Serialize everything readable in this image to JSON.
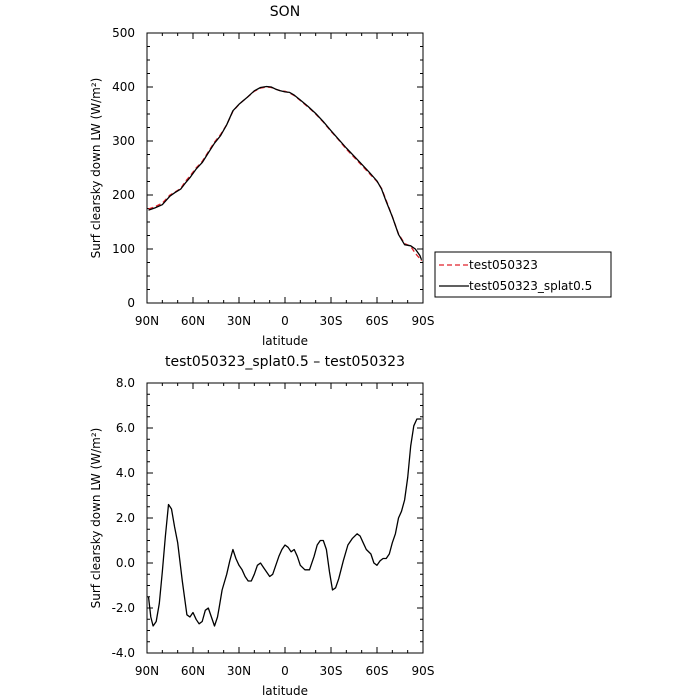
{
  "chart_data": [
    {
      "type": "line",
      "title": "SON",
      "xlabel": "latitude",
      "ylabel": "Surf clearsky down LW (W/m²)",
      "xlim": [
        90,
        -90
      ],
      "ylim": [
        0,
        500
      ],
      "xticks": [
        90,
        60,
        30,
        0,
        -30,
        -60,
        -90
      ],
      "xtick_labels": [
        "90N",
        "60N",
        "30N",
        "0",
        "30S",
        "60S",
        "90S"
      ],
      "yticks": [
        0,
        100,
        200,
        300,
        400,
        500
      ],
      "ytick_labels": [
        "0",
        "100",
        "200",
        "300",
        "400",
        "500"
      ],
      "legend_position": "right",
      "series": [
        {
          "name": "test050323",
          "color": "#e0202a",
          "dash": "dashed",
          "x": [
            89,
            85,
            80,
            75,
            72,
            68,
            65,
            62,
            58,
            54,
            50,
            46,
            42,
            38,
            34,
            30,
            25,
            20,
            16,
            12,
            9,
            6,
            3,
            0,
            -3,
            -6,
            -10,
            -15,
            -20,
            -25,
            -30,
            -35,
            -40,
            -45,
            -50,
            -55,
            -60,
            -63,
            -66,
            -70,
            -74,
            -78,
            -82,
            -85,
            -88,
            -89
          ],
          "y": [
            174,
            178,
            185,
            200,
            205,
            212,
            225,
            235,
            250,
            262,
            280,
            298,
            312,
            330,
            355,
            368,
            380,
            392,
            398,
            400,
            399,
            396,
            393,
            392,
            389,
            384,
            375,
            363,
            350,
            335,
            318,
            302,
            285,
            270,
            255,
            240,
            225,
            212,
            190,
            160,
            128,
            110,
            105,
            92,
            82,
            78
          ]
        },
        {
          "name": "test050323_splat0.5",
          "color": "#000000",
          "dash": "solid",
          "x": [
            89,
            85,
            80,
            75,
            72,
            68,
            65,
            62,
            58,
            54,
            50,
            46,
            42,
            38,
            34,
            30,
            25,
            20,
            16,
            12,
            9,
            6,
            3,
            0,
            -3,
            -6,
            -10,
            -15,
            -20,
            -25,
            -30,
            -35,
            -40,
            -45,
            -50,
            -55,
            -60,
            -63,
            -66,
            -70,
            -74,
            -78,
            -82,
            -85,
            -88,
            -89
          ],
          "y": [
            172,
            176,
            182,
            198,
            204,
            211,
            222,
            232,
            248,
            260,
            278,
            296,
            310,
            330,
            356,
            368,
            380,
            393,
            399,
            401,
            400,
            396,
            393,
            391,
            390,
            385,
            376,
            364,
            351,
            336,
            319,
            303,
            287,
            272,
            257,
            242,
            226,
            211,
            188,
            160,
            127,
            108,
            106,
            100,
            88,
            80
          ]
        }
      ]
    },
    {
      "type": "line",
      "title": "test050323_splat0.5 – test050323",
      "xlabel": "latitude",
      "ylabel": "Surf clearsky down LW (W/m²)",
      "xlim": [
        90,
        -90
      ],
      "ylim": [
        -4,
        8
      ],
      "xticks": [
        90,
        60,
        30,
        0,
        -30,
        -60,
        -90
      ],
      "xtick_labels": [
        "90N",
        "60N",
        "30N",
        "0",
        "30S",
        "60S",
        "90S"
      ],
      "yticks": [
        -4,
        -2,
        0,
        2,
        4,
        6,
        8
      ],
      "ytick_labels": [
        "-4.0",
        "-2.0",
        "0.0",
        "2.0",
        "4.0",
        "6.0",
        "8.0"
      ],
      "series": [
        {
          "color": "#000000",
          "dash": "solid",
          "x": [
            89,
            87.5,
            86,
            84,
            82,
            80,
            78,
            76,
            74,
            72,
            70,
            67,
            64,
            62,
            60,
            58,
            56,
            54,
            52,
            50,
            48,
            46,
            44,
            43,
            41,
            38,
            36,
            34,
            32,
            30,
            28,
            26,
            24,
            22,
            20,
            18,
            16,
            14,
            12,
            10,
            8,
            6,
            4,
            2,
            0,
            -2,
            -4,
            -6,
            -8,
            -10,
            -13,
            -16,
            -19,
            -21,
            -23,
            -25,
            -27,
            -29,
            -31,
            -33,
            -35,
            -38,
            -41,
            -44,
            -47,
            -49,
            -51,
            -53,
            -56,
            -58,
            -60,
            -62,
            -64,
            -66,
            -68,
            -70,
            -72,
            -74,
            -76,
            -78,
            -80,
            -82,
            -84,
            -86,
            -88,
            -89
          ],
          "y": [
            -1.5,
            -2.4,
            -2.8,
            -2.6,
            -1.8,
            -0.4,
            1.2,
            2.6,
            2.4,
            1.6,
            0.9,
            -0.8,
            -2.3,
            -2.4,
            -2.2,
            -2.5,
            -2.7,
            -2.6,
            -2.1,
            -2.0,
            -2.4,
            -2.8,
            -2.4,
            -2.0,
            -1.2,
            -0.5,
            0.1,
            0.6,
            0.2,
            -0.1,
            -0.3,
            -0.6,
            -0.8,
            -0.8,
            -0.5,
            -0.1,
            0.0,
            -0.2,
            -0.4,
            -0.6,
            -0.5,
            -0.1,
            0.3,
            0.6,
            0.8,
            0.7,
            0.5,
            0.6,
            0.3,
            -0.1,
            -0.3,
            -0.3,
            0.3,
            0.8,
            1.0,
            1.0,
            0.6,
            -0.4,
            -1.2,
            -1.1,
            -0.7,
            0.1,
            0.8,
            1.1,
            1.3,
            1.2,
            0.9,
            0.6,
            0.4,
            0.0,
            -0.1,
            0.1,
            0.2,
            0.2,
            0.4,
            0.9,
            1.3,
            2.0,
            2.3,
            2.8,
            3.8,
            5.2,
            6.1,
            6.4,
            6.4,
            6.4
          ]
        }
      ]
    }
  ]
}
